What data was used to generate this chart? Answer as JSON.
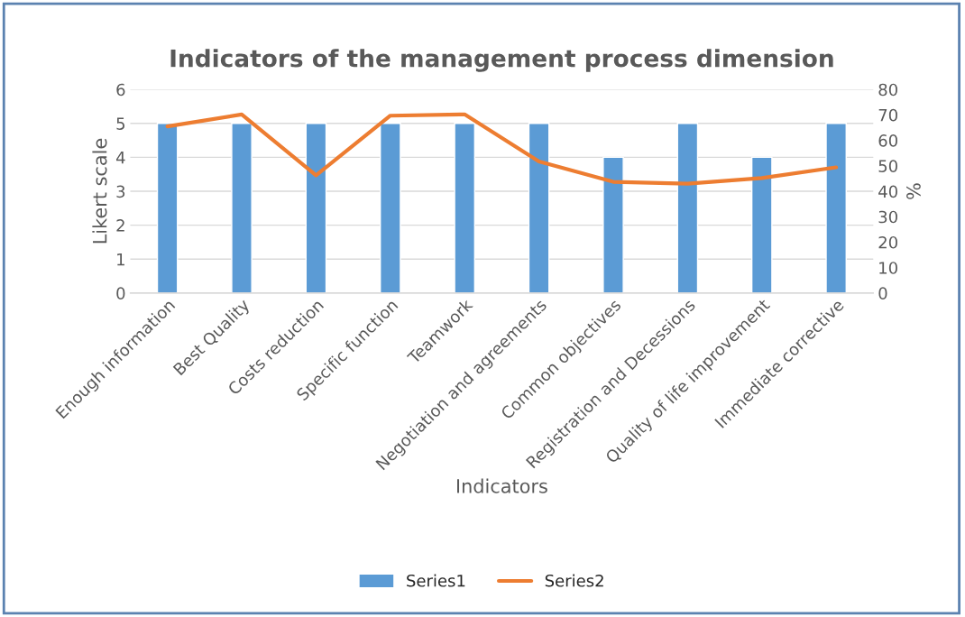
{
  "chart_data": {
    "type": "bar",
    "title": "Indicators of the management process dimension",
    "xlabel": "Indicators",
    "ylabel": "Likert scale",
    "y2label": "%",
    "categories": [
      "Enough information",
      "Best Quality",
      "Costs reduction",
      "Specific function",
      "Teamwork",
      "Negotiation and agreements",
      "Common objectives",
      "Registration and Decessions",
      "Quality of life improvement",
      "Immediate corrective"
    ],
    "series": [
      {
        "name": "Series1",
        "color": "#5b9bd5",
        "values": [
          5,
          5,
          5,
          5,
          5,
          5,
          4,
          5,
          4,
          5
        ]
      },
      {
        "name": "Series2",
        "type": "line",
        "axis": "y2",
        "color": "#ed7d31",
        "values": [
          65.5,
          70.2,
          46.3,
          69.7,
          70.2,
          51.7,
          43.7,
          43,
          45.2,
          49.4
        ]
      }
    ],
    "ylim": [
      0,
      6
    ],
    "yticks": [
      0,
      1,
      2,
      3,
      4,
      5,
      6
    ],
    "y2lim": [
      0,
      80
    ],
    "y2ticks": [
      0,
      10,
      20,
      30,
      40,
      50,
      60,
      70,
      80
    ],
    "grid": "y",
    "legend": "bottom"
  }
}
